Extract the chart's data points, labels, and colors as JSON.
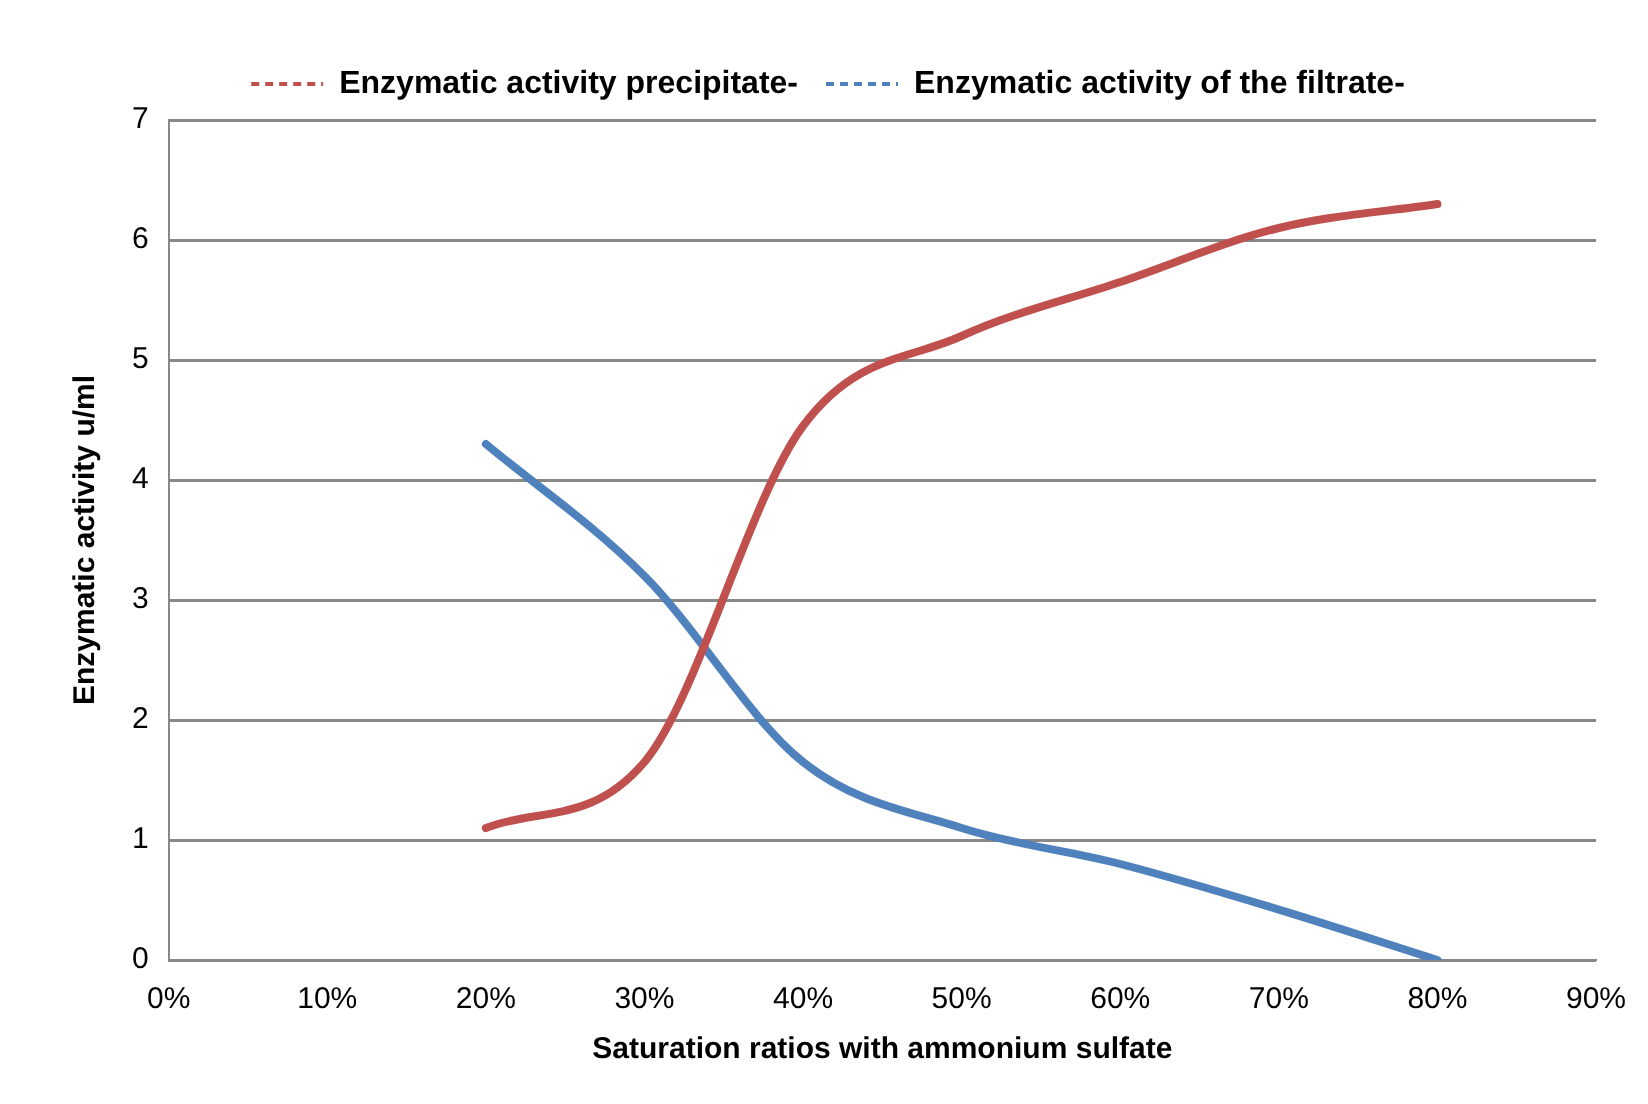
{
  "chart_data": {
    "type": "line",
    "xlabel": "Saturation ratios with ammonium sulfate",
    "ylabel": "Enzymatic activity u/ml",
    "x": [
      20,
      30,
      40,
      50,
      60,
      70,
      80
    ],
    "series": [
      {
        "name": "Enzymatic activity precipitate-",
        "color": "#c0504d",
        "values": [
          1.1,
          1.65,
          4.45,
          5.2,
          5.65,
          6.1,
          6.3
        ]
      },
      {
        "name": "Enzymatic activity of the filtrate-",
        "color": "#4f81bd",
        "values": [
          4.3,
          3.2,
          1.65,
          1.1,
          0.8,
          0.42,
          0
        ]
      }
    ],
    "xlim": [
      0,
      90
    ],
    "xticks": [
      {
        "value": 0,
        "label": "0%"
      },
      {
        "value": 10,
        "label": "10%"
      },
      {
        "value": 20,
        "label": "20%"
      },
      {
        "value": 30,
        "label": "30%"
      },
      {
        "value": 40,
        "label": "40%"
      },
      {
        "value": 50,
        "label": "50%"
      },
      {
        "value": 60,
        "label": "60%"
      },
      {
        "value": 70,
        "label": "70%"
      },
      {
        "value": 80,
        "label": "80%"
      },
      {
        "value": 90,
        "label": "90%"
      }
    ],
    "ylim": [
      0,
      7
    ],
    "yticks": [
      0,
      1,
      2,
      3,
      4,
      5,
      6,
      7
    ],
    "grid": "y",
    "legend": "top",
    "marker": "none",
    "line_style": "solid"
  }
}
